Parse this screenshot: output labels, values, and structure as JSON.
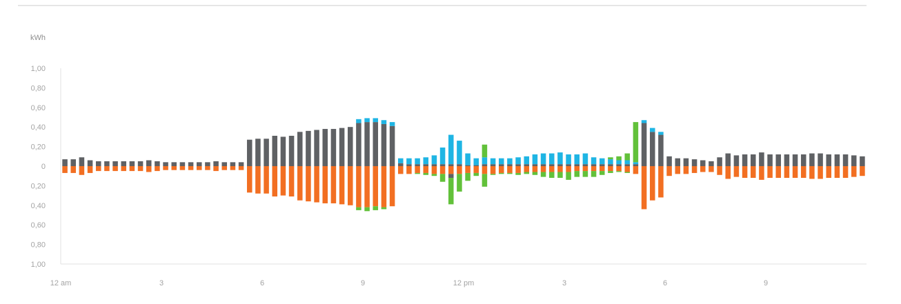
{
  "chart_data": {
    "type": "bar",
    "stacked": true,
    "title": "",
    "ylabel": "kWh",
    "xlabel": "",
    "ylim": [
      -1.0,
      1.0
    ],
    "y_ticks": [
      {
        "value": 1.0,
        "label": "1,00"
      },
      {
        "value": 0.8,
        "label": "0,80"
      },
      {
        "value": 0.6,
        "label": "0,60"
      },
      {
        "value": 0.4,
        "label": "0,40"
      },
      {
        "value": 0.2,
        "label": "0,20"
      },
      {
        "value": 0.0,
        "label": "0"
      },
      {
        "value": -0.2,
        "label": "0,20"
      },
      {
        "value": -0.4,
        "label": "0,40"
      },
      {
        "value": -0.6,
        "label": "0,60"
      },
      {
        "value": -0.8,
        "label": "0,80"
      },
      {
        "value": -1.0,
        "label": "1,00"
      }
    ],
    "x_ticks": [
      {
        "index": 0,
        "label": "12 am"
      },
      {
        "index": 12,
        "label": "3"
      },
      {
        "index": 24,
        "label": "6"
      },
      {
        "index": 36,
        "label": "9"
      },
      {
        "index": 48,
        "label": "12 pm"
      },
      {
        "index": 60,
        "label": "3"
      },
      {
        "index": 72,
        "label": "6"
      },
      {
        "index": 84,
        "label": "9"
      }
    ],
    "interval_count": 96,
    "grid": false,
    "colors": {
      "grey": "#5f6164",
      "blue": "#1fb5e4",
      "green": "#62c13a",
      "orange": "#f26f22"
    },
    "series": [
      {
        "side": "positive",
        "color": "grey",
        "values": [
          0.07,
          0.07,
          0.09,
          0.06,
          0.05,
          0.05,
          0.05,
          0.05,
          0.05,
          0.05,
          0.06,
          0.05,
          0.04,
          0.04,
          0.04,
          0.04,
          0.04,
          0.04,
          0.05,
          0.04,
          0.04,
          0.04,
          0.27,
          0.28,
          0.28,
          0.31,
          0.3,
          0.31,
          0.35,
          0.36,
          0.37,
          0.38,
          0.38,
          0.39,
          0.4,
          0.44,
          0.45,
          0.45,
          0.43,
          0.41,
          0.03,
          0.02,
          0.02,
          0.02,
          0.02,
          0.02,
          0.02,
          0.02,
          0.01,
          0.01,
          0.02,
          0.02,
          0.02,
          0.02,
          0.02,
          0.02,
          0.02,
          0.02,
          0.02,
          0.02,
          0.02,
          0.02,
          0.02,
          0.02,
          0.02,
          0.02,
          0.02,
          0.02,
          0.02,
          0.44,
          0.35,
          0.32,
          0.1,
          0.08,
          0.08,
          0.07,
          0.06,
          0.05,
          0.09,
          0.13,
          0.11,
          0.12,
          0.12,
          0.14,
          0.12,
          0.12,
          0.12,
          0.12,
          0.12,
          0.13,
          0.13,
          0.12,
          0.12,
          0.12,
          0.11,
          0.1
        ]
      },
      {
        "side": "positive",
        "color": "blue",
        "values": [
          0,
          0,
          0,
          0,
          0,
          0,
          0,
          0,
          0,
          0,
          0,
          0,
          0,
          0,
          0,
          0,
          0,
          0,
          0,
          0,
          0,
          0,
          0,
          0,
          0,
          0,
          0,
          0,
          0,
          0,
          0,
          0,
          0,
          0,
          0,
          0.04,
          0.04,
          0.04,
          0.04,
          0.04,
          0.05,
          0.06,
          0.06,
          0.07,
          0.09,
          0.17,
          0.3,
          0.24,
          0.12,
          0.07,
          0.07,
          0.06,
          0.06,
          0.06,
          0.07,
          0.08,
          0.1,
          0.11,
          0.11,
          0.12,
          0.1,
          0.1,
          0.11,
          0.07,
          0.06,
          0.05,
          0.04,
          0.04,
          0.02,
          0.03,
          0.04,
          0.03,
          0,
          0,
          0,
          0,
          0,
          0,
          0,
          0,
          0,
          0,
          0,
          0,
          0,
          0,
          0,
          0,
          0,
          0,
          0,
          0,
          0,
          0,
          0,
          0
        ]
      },
      {
        "side": "positive",
        "color": "green",
        "values": [
          0,
          0,
          0,
          0,
          0,
          0,
          0,
          0,
          0,
          0,
          0,
          0,
          0,
          0,
          0,
          0,
          0,
          0,
          0,
          0,
          0,
          0,
          0,
          0,
          0,
          0,
          0,
          0,
          0,
          0,
          0,
          0,
          0,
          0,
          0,
          0,
          0,
          0,
          0,
          0,
          0,
          0,
          0,
          0,
          0,
          0,
          0,
          0,
          0,
          0,
          0.13,
          0,
          0,
          0,
          0,
          0,
          0,
          0,
          0,
          0,
          0,
          0,
          0,
          0,
          0,
          0.02,
          0.04,
          0.07,
          0.41,
          0,
          0,
          0,
          0,
          0,
          0,
          0,
          0,
          0,
          0,
          0,
          0,
          0,
          0,
          0,
          0,
          0,
          0,
          0,
          0,
          0,
          0,
          0,
          0,
          0,
          0,
          0
        ]
      },
      {
        "side": "negative",
        "color": "orange",
        "values": [
          -0.07,
          -0.07,
          -0.09,
          -0.07,
          -0.05,
          -0.05,
          -0.05,
          -0.05,
          -0.05,
          -0.05,
          -0.06,
          -0.05,
          -0.04,
          -0.04,
          -0.04,
          -0.04,
          -0.04,
          -0.04,
          -0.05,
          -0.04,
          -0.04,
          -0.04,
          -0.27,
          -0.28,
          -0.28,
          -0.31,
          -0.3,
          -0.31,
          -0.35,
          -0.36,
          -0.37,
          -0.38,
          -0.38,
          -0.39,
          -0.4,
          -0.42,
          -0.42,
          -0.41,
          -0.42,
          -0.41,
          -0.08,
          -0.08,
          -0.07,
          -0.07,
          -0.08,
          -0.08,
          -0.08,
          -0.08,
          -0.07,
          -0.07,
          -0.08,
          -0.08,
          -0.07,
          -0.07,
          -0.07,
          -0.06,
          -0.06,
          -0.06,
          -0.06,
          -0.06,
          -0.06,
          -0.05,
          -0.05,
          -0.05,
          -0.05,
          -0.05,
          -0.05,
          -0.06,
          -0.08,
          -0.44,
          -0.35,
          -0.32,
          -0.1,
          -0.08,
          -0.08,
          -0.07,
          -0.06,
          -0.06,
          -0.09,
          -0.13,
          -0.11,
          -0.12,
          -0.12,
          -0.14,
          -0.12,
          -0.12,
          -0.12,
          -0.12,
          -0.12,
          -0.13,
          -0.13,
          -0.12,
          -0.12,
          -0.12,
          -0.11,
          -0.1
        ]
      },
      {
        "side": "negative",
        "color": "grey",
        "values": [
          0,
          0,
          0,
          0,
          0,
          0,
          0,
          0,
          0,
          0,
          0,
          0,
          0,
          0,
          0,
          0,
          0,
          0,
          0,
          0,
          0,
          0,
          0,
          0,
          0,
          0,
          0,
          0,
          0,
          0,
          0,
          0,
          0,
          0,
          0,
          0,
          0,
          0,
          0,
          0,
          0,
          0,
          0,
          0,
          0,
          0,
          -0.04,
          0,
          0,
          0,
          0,
          0,
          0,
          0,
          0,
          0,
          0,
          0,
          0,
          0,
          0,
          0,
          0,
          0,
          0,
          0,
          0,
          0,
          0,
          0,
          0,
          0,
          0,
          0,
          0,
          0,
          0,
          0,
          0,
          0,
          0,
          0,
          0,
          0,
          0,
          0,
          0,
          0,
          0,
          0,
          0,
          0,
          0,
          0,
          0,
          0
        ]
      },
      {
        "side": "negative",
        "color": "green",
        "values": [
          0,
          0,
          0,
          0,
          0,
          0,
          0,
          0,
          0,
          0,
          0,
          0,
          0,
          0,
          0,
          0,
          0,
          0,
          0,
          0,
          0,
          0,
          0,
          0,
          0,
          0,
          0,
          0,
          0,
          0,
          0,
          0,
          0,
          0,
          0,
          -0.03,
          -0.04,
          -0.04,
          -0.02,
          0,
          0,
          0,
          -0.01,
          -0.02,
          -0.02,
          -0.08,
          -0.27,
          -0.18,
          -0.08,
          -0.03,
          -0.13,
          -0.01,
          -0.01,
          -0.01,
          -0.02,
          -0.02,
          -0.03,
          -0.05,
          -0.06,
          -0.06,
          -0.08,
          -0.06,
          -0.06,
          -0.06,
          -0.04,
          -0.02,
          -0.01,
          -0.01,
          0,
          0,
          0,
          0,
          0,
          0,
          0,
          0,
          0,
          0,
          0,
          0,
          0,
          0,
          0,
          0,
          0,
          0,
          0,
          0,
          0,
          0,
          0,
          0,
          0,
          0,
          0,
          0
        ]
      }
    ]
  }
}
